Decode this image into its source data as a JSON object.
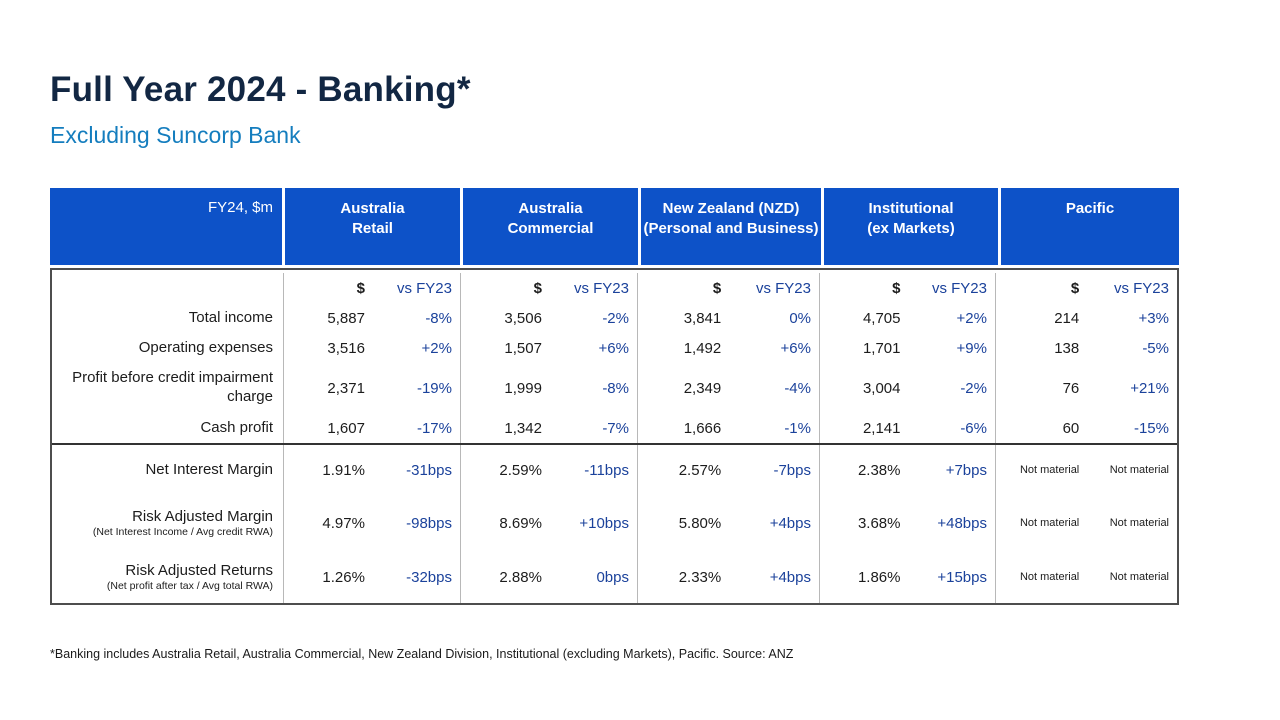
{
  "slide": {
    "title": "Full Year 2024 - Banking*",
    "subtitle": "Excluding Suncorp Bank",
    "footnote": "*Banking includes Australia Retail, Australia Commercial, New Zealand Division, Institutional (excluding Markets), Pacific. Source: ANZ"
  },
  "colors": {
    "title_navy": "#122743",
    "subtitle_blue": "#147DBE",
    "header_bg": "#0D52C8",
    "delta_blue": "#1B429B",
    "body_text": "#1C1C1C"
  },
  "table": {
    "corner_label": "FY24, $m",
    "column_headers": [
      "Australia\nRetail",
      "Australia\nCommercial",
      "New Zealand (NZD)\n(Personal and Business)",
      "Institutional\n(ex Markets)",
      "Pacific"
    ],
    "subheader": {
      "value": "$",
      "delta": "vs FY23"
    },
    "rows": [
      {
        "label": "Total income",
        "values": [
          "5,887",
          "3,506",
          "3,841",
          "4,705",
          "214"
        ],
        "deltas": [
          "-8%",
          "-2%",
          "0%",
          "+2%",
          "+3%"
        ]
      },
      {
        "label": "Operating expenses",
        "values": [
          "3,516",
          "1,507",
          "1,492",
          "1,701",
          "138"
        ],
        "deltas": [
          "+2%",
          "+6%",
          "+6%",
          "+9%",
          "-5%"
        ]
      },
      {
        "label": "Profit before credit impairment charge",
        "values": [
          "2,371",
          "1,999",
          "2,349",
          "3,004",
          "76"
        ],
        "deltas": [
          "-19%",
          "-8%",
          "-4%",
          "-2%",
          "+21%"
        ]
      },
      {
        "label": "Cash profit",
        "values": [
          "1,607",
          "1,342",
          "1,666",
          "2,141",
          "60"
        ],
        "deltas": [
          "-17%",
          "-7%",
          "-1%",
          "-6%",
          "-15%"
        ]
      },
      {
        "label": "Net Interest Margin",
        "values": [
          "1.91%",
          "2.59%",
          "2.57%",
          "2.38%",
          "Not material"
        ],
        "deltas": [
          "-31bps",
          "-11bps",
          "-7bps",
          "+7bps",
          "Not material"
        ]
      },
      {
        "label": "Risk Adjusted Margin",
        "sublabel": "(Net Interest Income / Avg credit RWA)",
        "values": [
          "4.97%",
          "8.69%",
          "5.80%",
          "3.68%",
          "Not material"
        ],
        "deltas": [
          "-98bps",
          "+10bps",
          "+4bps",
          "+48bps",
          "Not material"
        ]
      },
      {
        "label": "Risk Adjusted Returns",
        "sublabel": "(Net profit after tax / Avg total RWA)",
        "values": [
          "1.26%",
          "2.88%",
          "2.33%",
          "1.86%",
          "Not material"
        ],
        "deltas": [
          "-32bps",
          "0bps",
          "+4bps",
          "+15bps",
          "Not material"
        ]
      }
    ]
  }
}
